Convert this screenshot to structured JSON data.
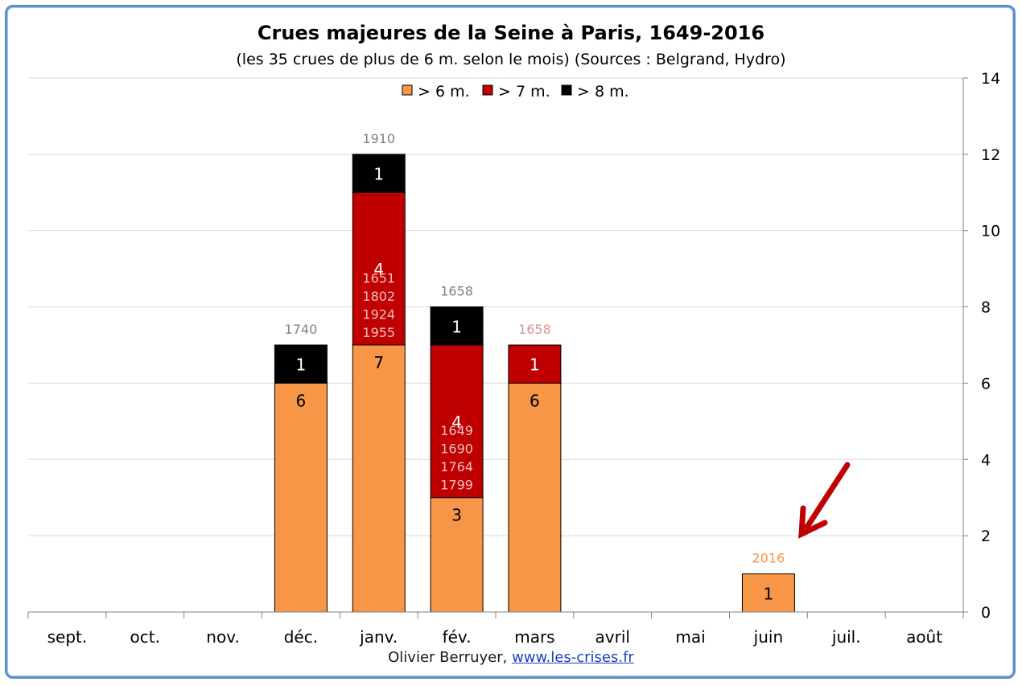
{
  "chart_data": {
    "type": "bar",
    "stacked": true,
    "title": "Crues majeures de la Seine à Paris, 1649-2016",
    "subtitle": "(les 35 crues de plus de 6 m. selon le mois) (Sources : Belgrand, Hydro)",
    "categories": [
      "sept.",
      "oct.",
      "nov.",
      "déc.",
      "janv.",
      "fév.",
      "mars",
      "avril",
      "mai",
      "juin",
      "juil.",
      "août"
    ],
    "series": [
      {
        "name": "> 6 m.",
        "color": "#f79646",
        "values": [
          0,
          0,
          0,
          6,
          7,
          3,
          6,
          0,
          0,
          1,
          0,
          0
        ]
      },
      {
        "name": "> 7 m.",
        "color": "#c00000",
        "values": [
          0,
          0,
          0,
          0,
          4,
          4,
          1,
          0,
          0,
          0,
          0,
          0
        ]
      },
      {
        "name": "> 8 m.",
        "color": "#000000",
        "values": [
          0,
          0,
          0,
          1,
          1,
          1,
          0,
          0,
          0,
          0,
          0,
          0
        ]
      }
    ],
    "ylim": [
      0,
      14
    ],
    "yticks": [
      0,
      2,
      4,
      6,
      8,
      10,
      12,
      14
    ],
    "y_axis_position": "right",
    "grid": true,
    "legend_position": "top-center",
    "annotations": [
      {
        "category": "déc.",
        "text": "1740",
        "color": "#808080"
      },
      {
        "category": "janv.",
        "text": "1910",
        "color": "#808080"
      },
      {
        "category": "fév.",
        "text": "1658",
        "color": "#808080"
      },
      {
        "category": "mars",
        "text": "1658",
        "color": "#d99694"
      },
      {
        "category": "juin",
        "text": "2016",
        "color": "#f79646"
      }
    ],
    "year_lists": [
      {
        "category": "janv.",
        "series": "> 7 m.",
        "years": [
          "1651",
          "1802",
          "1924",
          "1955"
        ]
      },
      {
        "category": "fév.",
        "series": "> 7 m.",
        "years": [
          "1649",
          "1690",
          "1764",
          "1799"
        ]
      }
    ],
    "arrow_color": "#c00000"
  },
  "footer": {
    "author": "Olivier Berruyer,",
    "link_text": "www.les-crises.fr"
  }
}
